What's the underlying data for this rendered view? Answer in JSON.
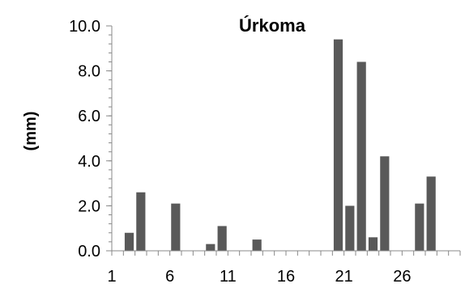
{
  "chart_data": {
    "type": "bar",
    "title": "Úrkoma",
    "xlabel": "",
    "ylabel": "(mm)",
    "x": [
      1,
      2,
      3,
      4,
      5,
      6,
      7,
      8,
      9,
      10,
      11,
      12,
      13,
      14,
      15,
      16,
      17,
      18,
      19,
      20,
      21,
      22,
      23,
      24,
      25,
      26,
      27,
      28,
      29,
      30
    ],
    "values": [
      0,
      0.8,
      2.6,
      0,
      0,
      2.1,
      0,
      0,
      0.3,
      1.1,
      0,
      0,
      0.5,
      0,
      0,
      0,
      0,
      0,
      0,
      9.4,
      2.0,
      8.4,
      0.6,
      4.2,
      0,
      0,
      2.1,
      3.3,
      0,
      0
    ],
    "xticks": [
      1,
      6,
      11,
      16,
      21,
      26
    ],
    "yticks": [
      "0.0",
      "2.0",
      "4.0",
      "6.0",
      "8.0",
      "10.0"
    ],
    "ylim": [
      0,
      10
    ],
    "bar_color": "#595959",
    "grid": false,
    "legend": "none"
  }
}
